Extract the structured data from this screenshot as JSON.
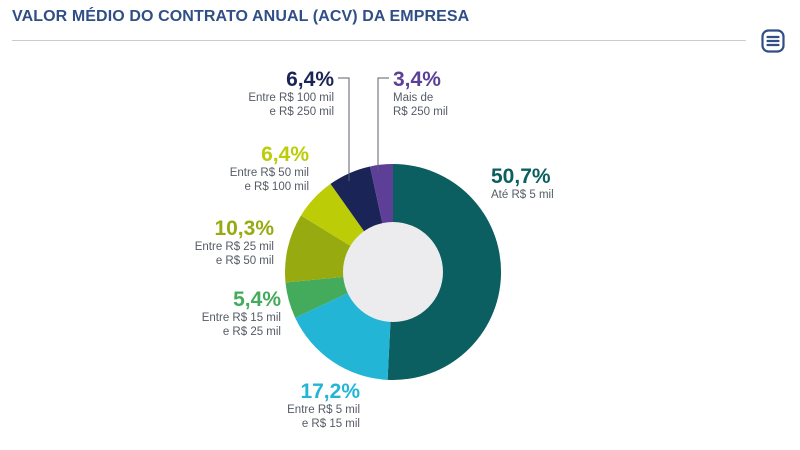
{
  "header": {
    "title": "VALOR MÉDIO DO CONTRATO ANUAL (ACV) DA EMPRESA",
    "menu_icon": "menu-lines-icon"
  },
  "colors": {
    "title": "#2f4f86",
    "accent": "#2f4f86",
    "hole": "#ececee"
  },
  "chart_data": {
    "type": "pie",
    "variant": "donut",
    "title": "VALOR MÉDIO DO CONTRATO ANUAL (ACV) DA EMPRESA",
    "legend": "none",
    "categories": [
      "Até R$ 5 mil",
      "Entre R$ 5 mil e R$ 15 mil",
      "Entre R$ 15 mil e R$ 25 mil",
      "Entre R$ 25 mil e R$ 50 mil",
      "Entre R$ 50 mil e R$ 100 mil",
      "Entre R$ 100 mil e R$ 250 mil",
      "Mais de R$ 250 mil"
    ],
    "values": [
      50.7,
      17.2,
      5.4,
      10.3,
      6.4,
      6.4,
      3.4
    ],
    "slices": [
      {
        "pct_label": "50,7%",
        "desc_lines": [
          "Até R$ 5 mil"
        ],
        "value": 50.7,
        "color": "#0c5f60"
      },
      {
        "pct_label": "17,2%",
        "desc_lines": [
          "Entre R$ 5 mil",
          "e R$ 15 mil"
        ],
        "value": 17.2,
        "color": "#22b5d6"
      },
      {
        "pct_label": "5,4%",
        "desc_lines": [
          "Entre R$ 15 mil",
          "e R$ 25 mil"
        ],
        "value": 5.4,
        "color": "#43ab5b"
      },
      {
        "pct_label": "10,3%",
        "desc_lines": [
          "Entre R$ 25 mil",
          "e R$ 50 mil"
        ],
        "value": 10.3,
        "color": "#97ab10"
      },
      {
        "pct_label": "6,4%",
        "desc_lines": [
          "Entre R$ 50 mil",
          "e R$ 100 mil"
        ],
        "value": 6.4,
        "color": "#bccd07"
      },
      {
        "pct_label": "6,4%",
        "desc_lines": [
          "Entre R$ 100 mil",
          "e R$ 250 mil"
        ],
        "value": 6.4,
        "color": "#1b2457"
      },
      {
        "pct_label": "3,4%",
        "desc_lines": [
          "Mais de",
          "R$ 250 mil"
        ],
        "value": 3.4,
        "color": "#5d3f97"
      }
    ]
  }
}
